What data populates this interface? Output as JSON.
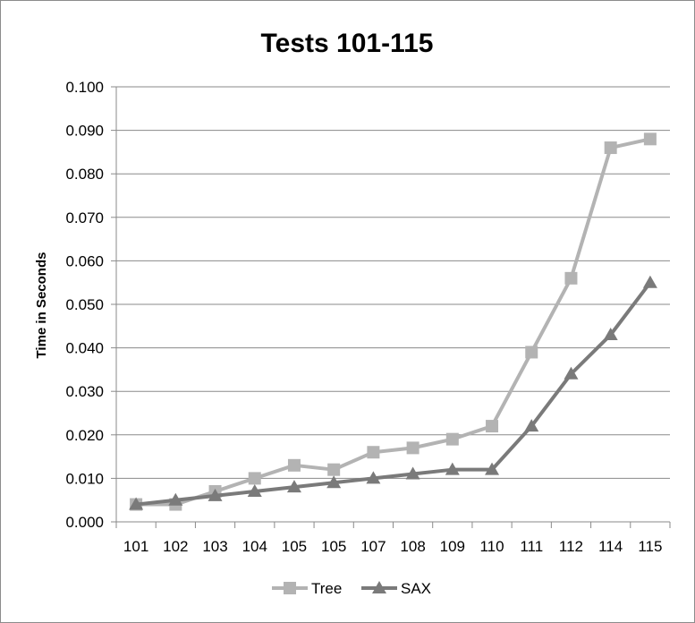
{
  "chart_data": {
    "type": "line",
    "title": "Tests 101-115",
    "xlabel": "",
    "ylabel": "Time in Seconds",
    "categories": [
      "101",
      "102",
      "103",
      "104",
      "105",
      "105",
      "107",
      "108",
      "109",
      "110",
      "111",
      "112",
      "114",
      "115"
    ],
    "ylim": [
      0,
      0.1
    ],
    "yticks": [
      "0.000",
      "0.010",
      "0.020",
      "0.030",
      "0.040",
      "0.050",
      "0.060",
      "0.070",
      "0.080",
      "0.090",
      "0.100"
    ],
    "grid": true,
    "legend_position": "bottom",
    "series": [
      {
        "name": "Tree",
        "marker": "square",
        "color": "#b3b3b3",
        "values": [
          0.004,
          0.004,
          0.007,
          0.01,
          0.013,
          0.012,
          0.016,
          0.017,
          0.019,
          0.022,
          0.039,
          0.056,
          0.086,
          0.088
        ]
      },
      {
        "name": "SAX",
        "marker": "triangle",
        "color": "#7a7a7a",
        "values": [
          0.004,
          0.005,
          0.006,
          0.007,
          0.008,
          0.009,
          0.01,
          0.011,
          0.012,
          0.012,
          0.022,
          0.034,
          0.043,
          0.055
        ]
      }
    ]
  }
}
